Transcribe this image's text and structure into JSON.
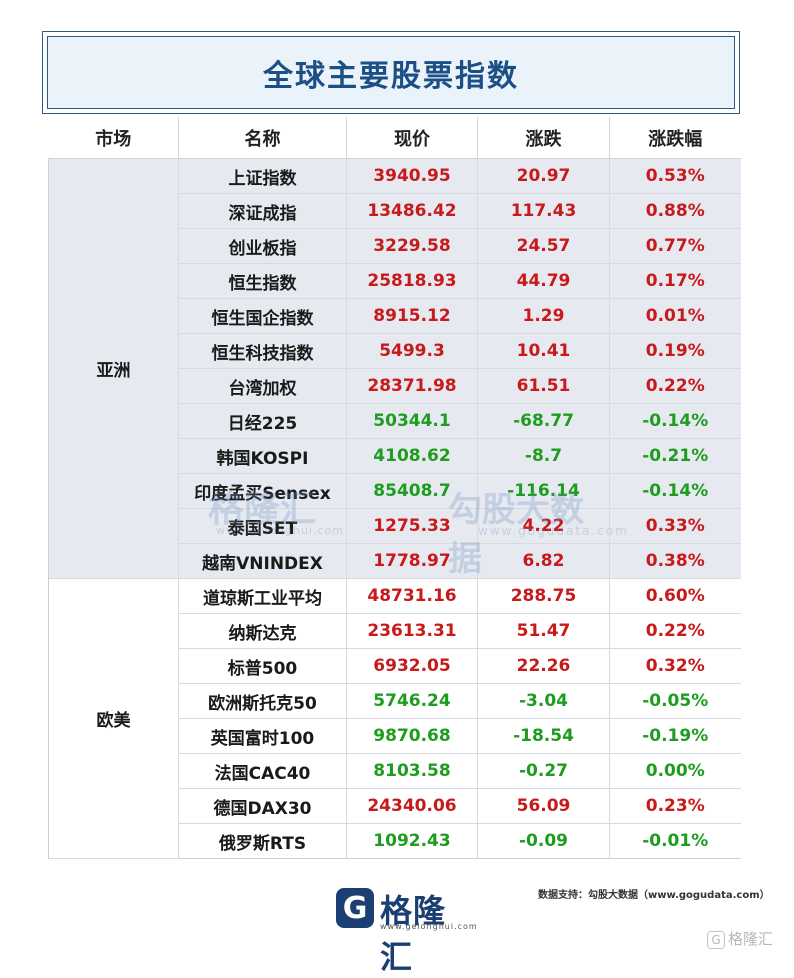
{
  "title": "全球主要股票指数",
  "headers": [
    "市场",
    "名称",
    "现价",
    "涨跌",
    "涨跌幅"
  ],
  "regions": [
    {
      "name": "亚洲",
      "rows": [
        {
          "name": "上证指数",
          "price": "3940.95",
          "change": "20.97",
          "pct": "0.53%",
          "dir": "up"
        },
        {
          "name": "深证成指",
          "price": "13486.42",
          "change": "117.43",
          "pct": "0.88%",
          "dir": "up"
        },
        {
          "name": "创业板指",
          "price": "3229.58",
          "change": "24.57",
          "pct": "0.77%",
          "dir": "up"
        },
        {
          "name": "恒生指数",
          "price": "25818.93",
          "change": "44.79",
          "pct": "0.17%",
          "dir": "up"
        },
        {
          "name": "恒生国企指数",
          "price": "8915.12",
          "change": "1.29",
          "pct": "0.01%",
          "dir": "up"
        },
        {
          "name": "恒生科技指数",
          "price": "5499.3",
          "change": "10.41",
          "pct": "0.19%",
          "dir": "up"
        },
        {
          "name": "台湾加权",
          "price": "28371.98",
          "change": "61.51",
          "pct": "0.22%",
          "dir": "up"
        },
        {
          "name": "日经225",
          "price": "50344.1",
          "change": "-68.77",
          "pct": "-0.14%",
          "dir": "down"
        },
        {
          "name": "韩国KOSPI",
          "price": "4108.62",
          "change": "-8.7",
          "pct": "-0.21%",
          "dir": "down"
        },
        {
          "name": "印度孟买Sensex",
          "price": "85408.7",
          "change": "-116.14",
          "pct": "-0.14%",
          "dir": "down"
        },
        {
          "name": "泰国SET",
          "price": "1275.33",
          "change": "4.22",
          "pct": "0.33%",
          "dir": "up"
        },
        {
          "name": "越南VNINDEX",
          "price": "1778.97",
          "change": "6.82",
          "pct": "0.38%",
          "dir": "up"
        }
      ]
    },
    {
      "name": "欧美",
      "rows": [
        {
          "name": "道琼斯工业平均",
          "price": "48731.16",
          "change": "288.75",
          "pct": "0.60%",
          "dir": "up"
        },
        {
          "name": "纳斯达克",
          "price": "23613.31",
          "change": "51.47",
          "pct": "0.22%",
          "dir": "up"
        },
        {
          "name": "标普500",
          "price": "6932.05",
          "change": "22.26",
          "pct": "0.32%",
          "dir": "up"
        },
        {
          "name": "欧洲斯托克50",
          "price": "5746.24",
          "change": "-3.04",
          "pct": "-0.05%",
          "dir": "down"
        },
        {
          "name": "英国富时100",
          "price": "9870.68",
          "change": "-18.54",
          "pct": "-0.19%",
          "dir": "down"
        },
        {
          "name": "法国CAC40",
          "price": "8103.58",
          "change": "-0.27",
          "pct": "0.00%",
          "dir": "down"
        },
        {
          "name": "德国DAX30",
          "price": "24340.06",
          "change": "56.09",
          "pct": "0.23%",
          "dir": "up"
        },
        {
          "name": "俄罗斯RTS",
          "price": "1092.43",
          "change": "-0.09",
          "pct": "-0.01%",
          "dir": "down"
        }
      ]
    }
  ],
  "colors": {
    "up": "#c8191b",
    "down": "#1e9c1e",
    "title": "#1b4f86"
  },
  "watermark": {
    "brand": "格隆汇",
    "brand_url": "www.gelonghui.com",
    "brand2": "勾股大数据",
    "brand2_url": "www.gogudata.com"
  },
  "footer": {
    "logo_mark": "G",
    "logo_name": "格隆汇",
    "logo_url": "www.gelonghui.com",
    "source": "数据支持：勾股大数据（www.gogudata.com）",
    "corner_mark": "G",
    "corner_name": "格隆汇"
  }
}
